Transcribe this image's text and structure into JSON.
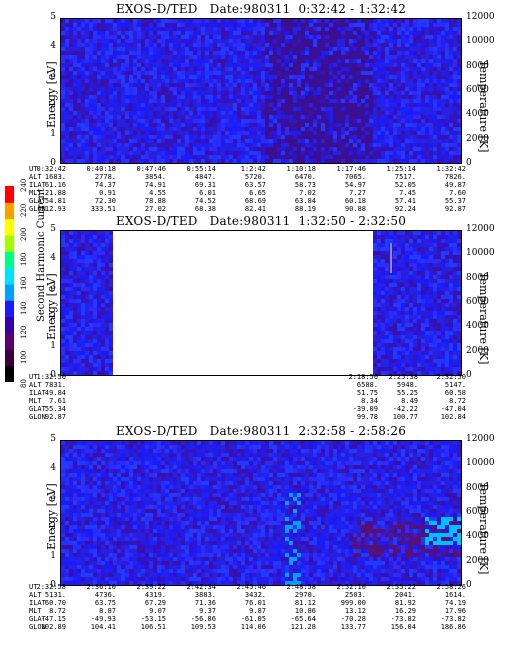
{
  "chart_data": [
    {
      "type": "heatmap",
      "title": "EXOS-D/TED   Date:980311  0:32:42 - 1:32:42",
      "ylabel": "Energy [eV]",
      "y2label": "Temperature [K]",
      "ylim": [
        0,
        5
      ],
      "y2lim": [
        0,
        12000
      ],
      "yticks": [
        "0",
        "1",
        "2",
        "3",
        "4",
        "5"
      ],
      "y2ticks": [
        "0",
        "2000",
        "4000",
        "6000",
        "8000",
        "10000",
        "12000"
      ],
      "data_gaps": [],
      "ephemeris": {
        "labels": [
          "UT",
          "ALT",
          "ILAT",
          "MLT",
          "GLAT",
          "GLON"
        ],
        "columns": [
          [
            "0:32:42",
            "1683.",
            "61.16",
            "21.88",
            "54.81",
            "312.93"
          ],
          [
            "0:40:18",
            "2778.",
            "74.37",
            "0.91",
            "72.30",
            "333.51"
          ],
          [
            "0:47:46",
            "3854.",
            "74.91",
            "4.55",
            "78.88",
            "27.02"
          ],
          [
            "0:55:14",
            "4847.",
            "69.31",
            "6.01",
            "74.52",
            "68.38"
          ],
          [
            "1:2:42",
            "5720.",
            "63.57",
            "6.65",
            "68.69",
            "82.41"
          ],
          [
            "1:10:18",
            "6470.",
            "58.73",
            "7.02",
            "63.84",
            "88.19"
          ],
          [
            "1:17:46",
            "7065.",
            "54.97",
            "7.27",
            "60.18",
            "90.88"
          ],
          [
            "1:25:14",
            "7517.",
            "52.05",
            "7.45",
            "57.41",
            "92.24"
          ],
          [
            "1:32:42",
            "7826.",
            "49.87",
            "7.60",
            "55.37",
            "92.87"
          ]
        ]
      }
    },
    {
      "type": "heatmap",
      "title": "EXOS-D/TED   Date:980311  1:32:50 - 2:32:50",
      "ylabel": "Energy [eV]",
      "y2label": "Temperature [K]",
      "ylim": [
        0,
        5
      ],
      "y2lim": [
        0,
        12000
      ],
      "yticks": [
        "0",
        "1",
        "2",
        "3",
        "4",
        "5"
      ],
      "y2ticks": [
        "0",
        "2000",
        "4000",
        "6000",
        "8000",
        "10000",
        "12000"
      ],
      "data_gaps": [
        [
          0.13,
          0.78
        ]
      ],
      "ephemeris": {
        "labels": [
          "UT",
          "ALT",
          "ILAT",
          "MLT",
          "GLAT",
          "GLON"
        ],
        "columns": [
          [
            "1:32:50",
            "7831.",
            "49.84",
            "7.61",
            "55.34",
            "92.87"
          ],
          [
            "2:18:50",
            "6588.",
            "51.75",
            "8.34",
            "-39.09",
            "99.78"
          ],
          [
            "2:25:38",
            "5948.",
            "55.25",
            "8.49",
            "-42.22",
            "100.77"
          ],
          [
            "2:32:50",
            "5147.",
            "60.58",
            "8.72",
            "-47.04",
            "102.84"
          ]
        ]
      }
    },
    {
      "type": "heatmap",
      "title": "EXOS-D/TED   Date:980311  2:32:58 - 2:58:26",
      "ylabel": "Energy [eV]",
      "y2label": "Temperature [K]",
      "ylim": [
        0,
        5
      ],
      "y2lim": [
        0,
        12000
      ],
      "yticks": [
        "0",
        "1",
        "2",
        "3",
        "4",
        "5"
      ],
      "y2ticks": [
        "0",
        "2000",
        "4000",
        "6000",
        "8000",
        "10000",
        "12000"
      ],
      "data_gaps": [],
      "ephemeris": {
        "labels": [
          "UT",
          "ALT",
          "ILAT",
          "MLT",
          "GLAT",
          "GLON"
        ],
        "columns": [
          [
            "2:32:58",
            "5131.",
            "60.70",
            "8.72",
            "-47.15",
            "102.89"
          ],
          [
            "2:36:10",
            "4736.",
            "63.75",
            "8.87",
            "-49.93",
            "104.41"
          ],
          [
            "2:39:22",
            "4319.",
            "67.29",
            "9.07",
            "-53.15",
            "106.51"
          ],
          [
            "2:42:34",
            "3883.",
            "71.36",
            "9.37",
            "-56.86",
            "109.53"
          ],
          [
            "2:45:46",
            "3432.",
            "76.01",
            "9.87",
            "-61.05",
            "114.06"
          ],
          [
            "2:48:58",
            "2970.",
            "81.12",
            "10.86",
            "-65.64",
            "121.28"
          ],
          [
            "2:52:10",
            "2503.",
            "999.00",
            "13.12",
            "-70.28",
            "133.77"
          ],
          [
            "2:55:22",
            "2041.",
            "81.92",
            "16.29",
            "-73.82",
            "156.04"
          ],
          [
            "2:58:26",
            "1614.",
            "74.19",
            "17.96",
            "-73.82",
            "186.86"
          ]
        ]
      }
    }
  ],
  "colorbar": {
    "label": "Second Harmonic Current",
    "ticks": [
      "80",
      "100",
      "120",
      "140",
      "160",
      "180",
      "200",
      "220",
      "240"
    ],
    "colors": [
      "#000000",
      "#3a003a",
      "#5a0070",
      "#3300aa",
      "#1a1aff",
      "#00a0ff",
      "#00e0ff",
      "#00ff80",
      "#a0ff00",
      "#ffff00",
      "#ffa000",
      "#ff0000"
    ]
  }
}
